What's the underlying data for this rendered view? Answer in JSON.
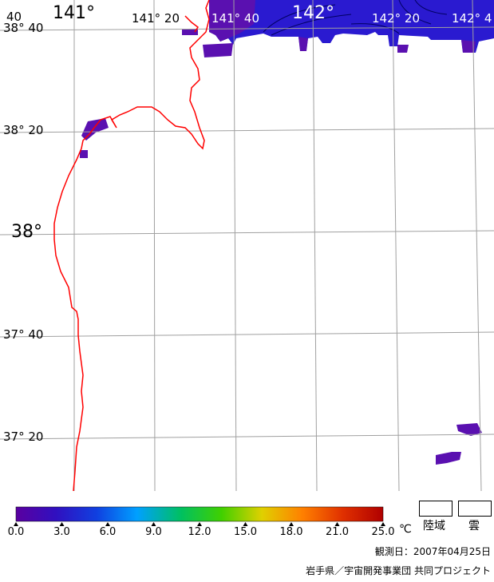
{
  "map": {
    "lon_labels": [
      {
        "text": "141°",
        "big": true
      },
      {
        "text": "141° 20",
        "big": false
      },
      {
        "text": "141° 40",
        "big": false,
        "white": true
      },
      {
        "text": "142°",
        "big": true,
        "white": true
      },
      {
        "text": "142° 20",
        "big": false,
        "white": true
      },
      {
        "text": "142° 4",
        "big": false,
        "white": true
      }
    ],
    "lat_labels": [
      {
        "text": "38° 40",
        "big": false
      },
      {
        "text": "38° 20",
        "big": false
      },
      {
        "text": "38°",
        "big": true
      },
      {
        "text": "37° 40",
        "big": false
      },
      {
        "text": "37° 20",
        "big": false
      }
    ],
    "corner_label": "40",
    "colors": {
      "coastline": "#ff0000",
      "grid": "#a0a0a0",
      "sst_cold": "#5a10b0",
      "sst_blue": "#2a1ad0"
    }
  },
  "legend": {
    "ticks": [
      "0.0",
      "3.0",
      "6.0",
      "9.0",
      "12.0",
      "15.0",
      "18.0",
      "21.0",
      "25.0"
    ],
    "unit": "℃",
    "land_label": "陸域",
    "cloud_label": "雲",
    "colorbar_stops": [
      "#5a00a0",
      "#3010c0",
      "#1040e0",
      "#00a0ff",
      "#00c060",
      "#40d000",
      "#e0d000",
      "#ff8000",
      "#e03000",
      "#b00000"
    ]
  },
  "footer": {
    "observation_date": "観測日：2007年04月25日",
    "credit": "岩手県／宇宙開発事業団  共同プロジェクト"
  }
}
